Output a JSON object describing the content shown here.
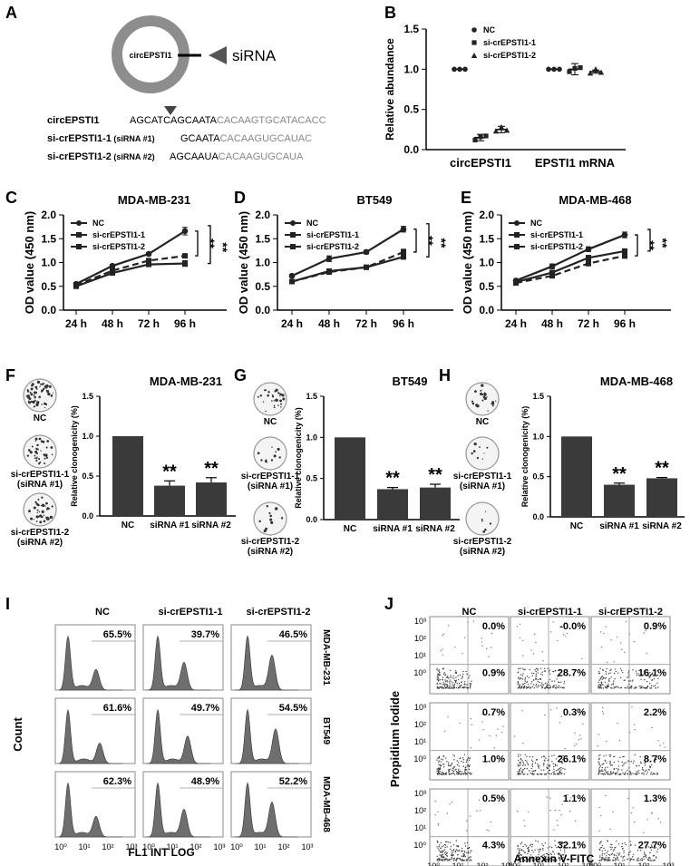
{
  "panels": {
    "A": {
      "label": "A",
      "circ_label": "circEPSTI1",
      "sirna_label": "siRNA",
      "rows": [
        {
          "name": "circEPSTI1",
          "tag": "",
          "seq_black": "AGCATCAGCAATA",
          "seq_grey": "CACAAGTGCATACACC"
        },
        {
          "name": "si-crEPSTI1-1",
          "tag": " (siRNA #1)",
          "seq_black": "GCAATA",
          "seq_grey": "CACAAGUGCAUAC"
        },
        {
          "name": "si-crEPSTI1-2",
          "tag": " (siRNA #2)",
          "seq_black": "AGCAAUA",
          "seq_grey": "CACAAGUGCAUA"
        }
      ]
    },
    "F": {
      "label": "F",
      "thumbs": [
        "NC",
        "si-crEPSTI1-1\n(siRNA #1)",
        "si-crEPSTI1-2\n(siRNA #2)"
      ]
    },
    "G": {
      "label": "G",
      "thumbs": [
        "NC",
        "si-crEPSTI1-1\n(siRNA #1)",
        "si-crEPSTI1-2\n(siRNA #2)"
      ]
    },
    "H": {
      "label": "H",
      "thumbs": [
        "NC",
        "si-crEPSTI1-1\n(siRNA #1)",
        "si-crEPSTI1-2\n(siRNA #2)"
      ]
    },
    "I": {
      "label": "I",
      "cols": [
        "NC",
        "si-crEPSTI1-1",
        "si-crEPSTI1-2"
      ],
      "rows": [
        "MDA-MB-231",
        "BT549",
        "MDA-MB-468"
      ],
      "pcts": [
        [
          "65.5%",
          "39.7%",
          "46.5%"
        ],
        [
          "61.6%",
          "49.7%",
          "54.5%"
        ],
        [
          "62.3%",
          "48.9%",
          "52.2%"
        ]
      ],
      "ylabel": "Count",
      "xlabel": "FL1 INT LOG",
      "xticks": [
        "10⁰",
        "10¹",
        "10²",
        "10³"
      ]
    },
    "J": {
      "label": "J",
      "cols": [
        "NC",
        "si-crEPSTI1-1",
        "si-crEPSTI1-2"
      ],
      "upper": [
        [
          "0.0%",
          "-0.0%",
          "0.9%"
        ],
        [
          "0.7%",
          "0.3%",
          "2.2%"
        ],
        [
          "0.5%",
          "1.1%",
          "1.3%"
        ]
      ],
      "lower": [
        [
          "0.9%",
          "28.7%",
          "16.1%"
        ],
        [
          "1.0%",
          "26.1%",
          "8.7%"
        ],
        [
          "4.3%",
          "32.1%",
          "27.7%"
        ]
      ],
      "ylabel": "Propidium Iodide",
      "xlabel": "Annexin V-FITC",
      "yticks": [
        "10³",
        "10²",
        "10¹",
        "10⁰"
      ],
      "xticks": [
        "10⁰",
        "10¹",
        "10²",
        "10³"
      ]
    }
  },
  "chart_data": [
    {
      "id": "B",
      "type": "scatter",
      "title": "",
      "ylabel": "Relative abundance",
      "ylim": [
        0,
        1.5
      ],
      "yticks": [
        0.0,
        0.5,
        1.0,
        1.5
      ],
      "categories": [
        "circEPSTI1",
        "EPSTI1 mRNA"
      ],
      "series": [
        {
          "name": "NC",
          "marker": "circle",
          "values": [
            1.0,
            1.0
          ],
          "sd": [
            0,
            0
          ]
        },
        {
          "name": "si-crEPSTI1-1",
          "marker": "square",
          "values": [
            0.15,
            1.0
          ],
          "sd": [
            0.04,
            0.07
          ]
        },
        {
          "name": "si-crEPSTI1-2",
          "marker": "triangle",
          "values": [
            0.25,
            0.97
          ],
          "sd": [
            0.04,
            0.02
          ]
        }
      ]
    },
    {
      "id": "C",
      "type": "line",
      "title": "MDA-MB-231",
      "ylabel": "OD value (450 nm)",
      "ylim": [
        0,
        2.0
      ],
      "yticks": [
        0.0,
        0.5,
        1.0,
        1.5,
        2.0
      ],
      "x": [
        "24 h",
        "48 h",
        "72 h",
        "96 h"
      ],
      "sig": [
        "**",
        "**"
      ],
      "series": [
        {
          "name": "NC",
          "values": [
            0.55,
            0.93,
            1.18,
            1.66
          ],
          "sd": [
            0.03,
            0.03,
            0.03,
            0.08
          ]
        },
        {
          "name": "si-crEPSTI1-1",
          "values": [
            0.5,
            0.78,
            0.96,
            0.98
          ],
          "sd": [
            0.03,
            0.03,
            0.03,
            0.06
          ]
        },
        {
          "name": "si-crEPSTI1-2",
          "values": [
            0.52,
            0.83,
            1.04,
            1.14
          ],
          "sd": [
            0.03,
            0.03,
            0.03,
            0.03
          ]
        }
      ]
    },
    {
      "id": "D",
      "type": "line",
      "title": "BT549",
      "ylabel": "OD value (450 nm)",
      "ylim": [
        0,
        2.0
      ],
      "yticks": [
        0.0,
        0.5,
        1.0,
        1.5,
        2.0
      ],
      "x": [
        "24 h",
        "48 h",
        "72 h",
        "96 h"
      ],
      "sig": [
        "**",
        "**"
      ],
      "series": [
        {
          "name": "NC",
          "values": [
            0.72,
            1.08,
            1.22,
            1.7
          ],
          "sd": [
            0.03,
            0.06,
            0.04,
            0.06
          ]
        },
        {
          "name": "si-crEPSTI1-1",
          "values": [
            0.6,
            0.82,
            0.9,
            1.12
          ],
          "sd": [
            0.03,
            0.03,
            0.03,
            0.05
          ]
        },
        {
          "name": "si-crEPSTI1-2",
          "values": [
            0.6,
            0.8,
            0.9,
            1.22
          ],
          "sd": [
            0.03,
            0.03,
            0.03,
            0.06
          ]
        }
      ]
    },
    {
      "id": "E",
      "type": "line",
      "title": "MDA-MB-468",
      "ylabel": "OD value (450 nm)",
      "ylim": [
        0,
        2.0
      ],
      "yticks": [
        0.0,
        0.5,
        1.0,
        1.5,
        2.0
      ],
      "x": [
        "24 h",
        "48 h",
        "72 h",
        "96 h"
      ],
      "sig": [
        "**",
        "**"
      ],
      "series": [
        {
          "name": "NC",
          "values": [
            0.62,
            0.92,
            1.28,
            1.58
          ],
          "sd": [
            0.03,
            0.05,
            0.05,
            0.06
          ]
        },
        {
          "name": "si-crEPSTI1-1",
          "values": [
            0.59,
            0.79,
            1.1,
            1.24
          ],
          "sd": [
            0.03,
            0.04,
            0.05,
            0.04
          ]
        },
        {
          "name": "si-crEPSTI1-2",
          "values": [
            0.57,
            0.72,
            0.98,
            1.14
          ],
          "sd": [
            0.03,
            0.04,
            0.05,
            0.05
          ]
        }
      ]
    },
    {
      "id": "F",
      "type": "bar",
      "title": "MDA-MB-231",
      "ylabel": "Relative clonogenicity (%)",
      "ylim": [
        0,
        1.5
      ],
      "yticks": [
        0.0,
        0.5,
        1.0,
        1.5
      ],
      "categories": [
        "NC",
        "siRNA #1",
        "siRNA #2"
      ],
      "values": [
        1.0,
        0.38,
        0.42
      ],
      "sd": [
        0,
        0.06,
        0.06
      ],
      "sig": [
        "",
        "**",
        "**"
      ]
    },
    {
      "id": "G",
      "type": "bar",
      "title": "BT549",
      "ylabel": "Relative clonogenicity (%)",
      "ylim": [
        0,
        1.5
      ],
      "yticks": [
        0.0,
        0.5,
        1.0,
        1.5
      ],
      "categories": [
        "NC",
        "siRNA #1",
        "siRNA #2"
      ],
      "values": [
        1.0,
        0.37,
        0.39
      ],
      "sd": [
        0,
        0.02,
        0.04
      ],
      "sig": [
        "",
        "**",
        "**"
      ]
    },
    {
      "id": "H",
      "type": "bar",
      "title": "MDA-MB-468",
      "ylabel": "Relative clonogenicity (%)",
      "ylim": [
        0,
        1.5
      ],
      "yticks": [
        0.0,
        0.5,
        1.0,
        1.5
      ],
      "categories": [
        "NC",
        "siRNA #1",
        "siRNA #2"
      ],
      "values": [
        1.0,
        0.4,
        0.48
      ],
      "sd": [
        0,
        0.02,
        0.01
      ],
      "sig": [
        "",
        "**",
        "**"
      ]
    }
  ]
}
